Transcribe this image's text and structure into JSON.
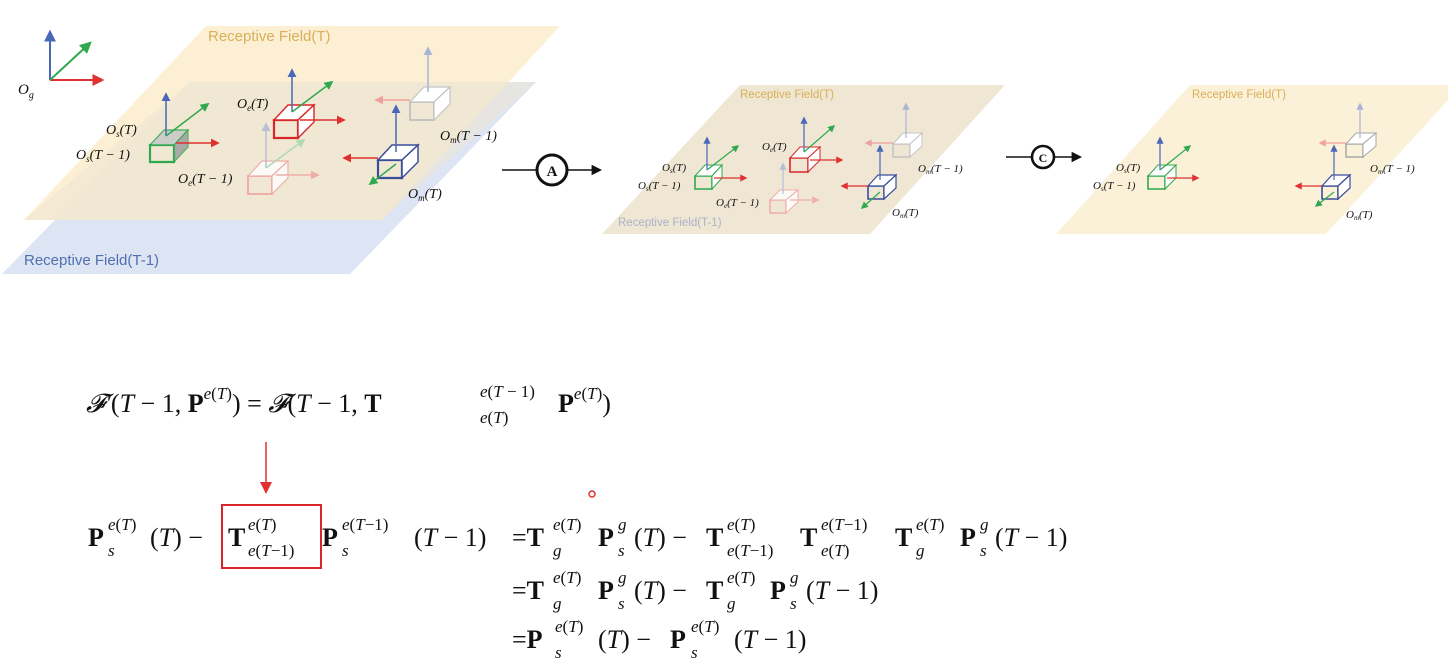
{
  "diagram": {
    "axes_label": "O",
    "axes_label_sub": "g",
    "panel1": {
      "rf_t": "Receptive Field(T)",
      "rf_t1": "Receptive Field(T-1)",
      "os_t": "(T)",
      "os_t1": "(T − 1)",
      "oe_t": "(T)",
      "oe_t1": "(T − 1)",
      "om_t": "(T)",
      "om_t1": "(T − 1)"
    },
    "step_a": "A",
    "panel2": {
      "rf_t": "Receptive Field(T)",
      "rf_t1": "Receptive Field(T-1)",
      "os_t": "(T)",
      "os_t1": "(T − 1)",
      "oe_t": "(T)",
      "oe_t1": "(T − 1)",
      "om_t": "(T)",
      "om_t1": "(T − 1)"
    },
    "step_c": "C",
    "panel3": {
      "rf_t": "Receptive Field(T)",
      "os_t": "(T)",
      "os_t1": "(T − 1)",
      "om_t": "(T)",
      "om_t1": "(T − 1)"
    }
  },
  "equations": {
    "eq1": "𝓕′(T − 1, P^{e(T)}) = 𝓕(T − 1, T_{e(T)}^{e(T−1)} P^{e(T)})",
    "eq2_lhs": "P_s^{e(T)}(T) − T_{e(T−1)}^{e(T)} P_s^{e(T−1)}(T − 1)",
    "eq2_line1": "= T_g^{e(T)} P_s^g(T) − T_{e(T−1)}^{e(T)} T_{e(T)}^{e(T−1)} T_g^{e(T)} P_s^g(T − 1)",
    "eq2_line2": "= T_g^{e(T)} P_s^g(T) − T_g^{e(T)} P_s^g(T − 1)",
    "eq2_line3": "= P_s^{e(T)}(T) − P_s^{e(T)}(T − 1)"
  },
  "colors": {
    "rf_t_fill": "#fbeccb",
    "rf_t1_fill": "#dde4f3",
    "rf_overlap": "#efe7d4",
    "rf_t_text": "#d9b057",
    "rf_t1_text": "#4f6fb0",
    "green": "#2fa84f",
    "red": "#d9262b",
    "blue": "#3a4d9a",
    "gray": "#b9b9b9",
    "axis_blue": "#4a68b8",
    "axis_red": "#e03030",
    "axis_green": "#2fa84f",
    "highlight_box": "#d8262b"
  }
}
